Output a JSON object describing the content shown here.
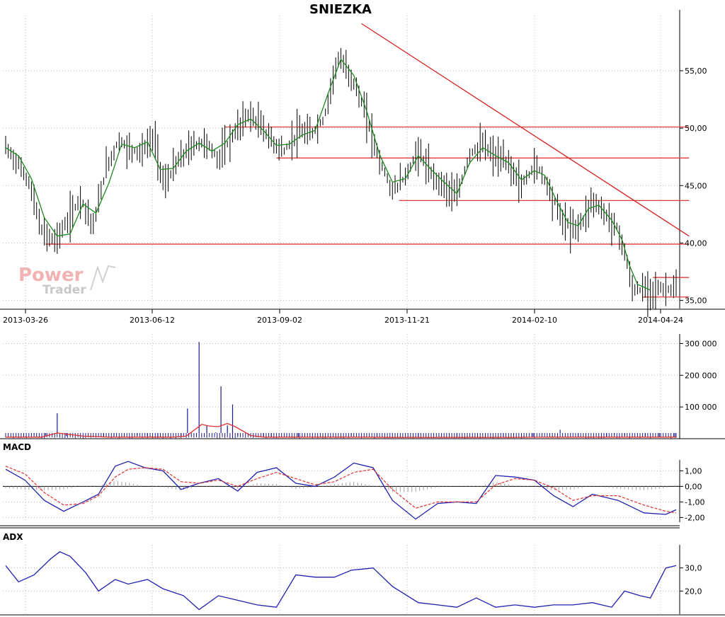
{
  "colors": {
    "background": "#ffffff",
    "grid": "#b8b8b8",
    "axis": "#000000",
    "price_bars": "#000000",
    "moving_average": "#1a8a1a",
    "support_resistance": "#e23a3a",
    "trendline": "#d42020",
    "volume_bars": "#1a1a8c",
    "volume_average": "#e03030",
    "macd_line": "#2020b0",
    "signal_line": "#e03030",
    "histogram": "#a0a0a0",
    "adx_line": "#2020b0"
  },
  "watermark": {
    "line1": "Power",
    "line2": "Trader"
  },
  "chart_data": [
    {
      "type": "candlestick",
      "panel": "price",
      "title": "SNIEZKA",
      "x_tick_labels": [
        "2013-03-26",
        "2013-06-12",
        "2013-09-02",
        "2013-11-21",
        "2014-02-10",
        "2014-04-24"
      ],
      "y_tick_labels": [
        "55,00",
        "50,00",
        "45,00",
        "40,00",
        "35,00"
      ],
      "ylim": [
        34.3,
        59.8
      ],
      "grid": true,
      "price_path": [
        [
          0,
          48.3
        ],
        [
          8,
          47.2
        ],
        [
          18,
          45.3
        ],
        [
          28,
          41.0
        ],
        [
          38,
          40.2
        ],
        [
          48,
          41.8
        ],
        [
          58,
          44.0
        ],
        [
          68,
          41.5
        ],
        [
          78,
          46.5
        ],
        [
          88,
          49.0
        ],
        [
          95,
          48.2
        ],
        [
          105,
          47.9
        ],
        [
          115,
          49.2
        ],
        [
          123,
          45.0
        ],
        [
          133,
          47.0
        ],
        [
          145,
          48.5
        ],
        [
          155,
          48.8
        ],
        [
          165,
          47.3
        ],
        [
          177,
          49.5
        ],
        [
          188,
          51.2
        ],
        [
          198,
          50.2
        ],
        [
          207,
          48.8
        ],
        [
          216,
          48.0
        ],
        [
          227,
          49.6
        ],
        [
          237,
          49.5
        ],
        [
          247,
          50.8
        ],
        [
          257,
          56.0
        ],
        [
          263,
          55.4
        ],
        [
          270,
          54.0
        ],
        [
          280,
          51.0
        ],
        [
          290,
          47.2
        ],
        [
          300,
          44.5
        ],
        [
          310,
          45.8
        ],
        [
          320,
          48.0
        ],
        [
          330,
          46.0
        ],
        [
          340,
          45.0
        ],
        [
          350,
          44.0
        ],
        [
          360,
          47.8
        ],
        [
          370,
          48.5
        ],
        [
          380,
          47.5
        ],
        [
          390,
          46.9
        ],
        [
          400,
          45.0
        ],
        [
          410,
          46.7
        ],
        [
          415,
          46.3
        ],
        [
          425,
          43.8
        ],
        [
          432,
          42.0
        ],
        [
          440,
          41.2
        ],
        [
          448,
          42.0
        ],
        [
          455,
          43.8
        ],
        [
          465,
          42.5
        ],
        [
          475,
          41.2
        ],
        [
          481,
          38.8
        ],
        [
          486,
          36.0
        ],
        [
          492,
          35.9
        ],
        [
          500,
          36.0
        ]
      ],
      "moving_average": [
        [
          0,
          48.3
        ],
        [
          10,
          47.6
        ],
        [
          20,
          45.6
        ],
        [
          30,
          42.2
        ],
        [
          40,
          40.6
        ],
        [
          50,
          40.8
        ],
        [
          60,
          43.4
        ],
        [
          70,
          42.6
        ],
        [
          80,
          45.2
        ],
        [
          90,
          48.6
        ],
        [
          100,
          48.3
        ],
        [
          110,
          48.8
        ],
        [
          120,
          46.4
        ],
        [
          130,
          46.5
        ],
        [
          140,
          48.0
        ],
        [
          150,
          48.7
        ],
        [
          160,
          48.0
        ],
        [
          170,
          48.7
        ],
        [
          180,
          50.3
        ],
        [
          190,
          50.8
        ],
        [
          200,
          49.8
        ],
        [
          210,
          48.5
        ],
        [
          220,
          48.6
        ],
        [
          230,
          49.4
        ],
        [
          240,
          49.8
        ],
        [
          250,
          53.0
        ],
        [
          260,
          56.0
        ],
        [
          270,
          54.6
        ],
        [
          280,
          51.5
        ],
        [
          290,
          47.7
        ],
        [
          300,
          45.3
        ],
        [
          310,
          45.6
        ],
        [
          320,
          47.6
        ],
        [
          330,
          46.4
        ],
        [
          340,
          45.3
        ],
        [
          350,
          44.3
        ],
        [
          360,
          47.0
        ],
        [
          370,
          48.3
        ],
        [
          380,
          47.6
        ],
        [
          390,
          47.0
        ],
        [
          400,
          45.5
        ],
        [
          410,
          46.3
        ],
        [
          418,
          45.9
        ],
        [
          428,
          43.5
        ],
        [
          436,
          41.8
        ],
        [
          444,
          41.5
        ],
        [
          452,
          43.0
        ],
        [
          460,
          43.3
        ],
        [
          470,
          42.0
        ],
        [
          478,
          40.3
        ],
        [
          484,
          38.0
        ],
        [
          490,
          36.4
        ],
        [
          500,
          35.9
        ]
      ],
      "support_resistance": [
        {
          "y": 50.1,
          "x0": 170,
          "x1": 530
        },
        {
          "y": 47.4,
          "x0": 210,
          "x1": 530
        },
        {
          "y": 43.7,
          "x0": 305,
          "x1": 530
        },
        {
          "y": 39.9,
          "x0": 31,
          "x1": 530
        },
        {
          "y": 37.0,
          "x0": 502,
          "x1": 530
        },
        {
          "y": 35.3,
          "x0": 494,
          "x1": 530
        }
      ],
      "trendline": {
        "x0": 276,
        "y0": 59.1,
        "x1": 530,
        "y1": 40.6
      }
    },
    {
      "type": "bar",
      "panel": "volume",
      "y_tick_labels": [
        "300 000",
        "200 000",
        "100 000"
      ],
      "ylim": [
        0,
        330000
      ],
      "spikes": [
        [
          22,
          13000
        ],
        [
          31,
          9000
        ],
        [
          40,
          80000
        ],
        [
          47,
          8000
        ],
        [
          76,
          7000
        ],
        [
          84,
          6000
        ],
        [
          102,
          9000
        ],
        [
          110,
          8000
        ],
        [
          118,
          7000
        ],
        [
          136,
          6000
        ],
        [
          141,
          95000
        ],
        [
          150,
          305000
        ],
        [
          156,
          42000
        ],
        [
          163,
          20000
        ],
        [
          167,
          165000
        ],
        [
          172,
          42000
        ],
        [
          176,
          108000
        ],
        [
          180,
          10000
        ],
        [
          200,
          7000
        ],
        [
          206,
          6000
        ],
        [
          227,
          5000
        ],
        [
          268,
          9000
        ],
        [
          288,
          7000
        ],
        [
          320,
          6000
        ],
        [
          350,
          5000
        ],
        [
          386,
          5000
        ],
        [
          409,
          6000
        ],
        [
          430,
          28000
        ],
        [
          444,
          7000
        ],
        [
          466,
          6000
        ],
        [
          472,
          13000
        ],
        [
          480,
          9000
        ],
        [
          496,
          8000
        ],
        [
          507,
          6000
        ],
        [
          519,
          5000
        ]
      ],
      "average": [
        [
          0,
          5000
        ],
        [
          28,
          5000
        ],
        [
          40,
          18000
        ],
        [
          60,
          8000
        ],
        [
          80,
          5000
        ],
        [
          130,
          5000
        ],
        [
          140,
          8000
        ],
        [
          152,
          45000
        ],
        [
          158,
          40000
        ],
        [
          165,
          38000
        ],
        [
          172,
          48000
        ],
        [
          178,
          38000
        ],
        [
          190,
          10000
        ],
        [
          200,
          5000
        ],
        [
          280,
          5000
        ],
        [
          300,
          4000
        ],
        [
          380,
          4000
        ],
        [
          420,
          5000
        ],
        [
          460,
          5000
        ],
        [
          500,
          5000
        ],
        [
          520,
          5000
        ]
      ]
    },
    {
      "type": "line",
      "panel": "macd",
      "title": "MACD",
      "y_tick_labels": [
        "1,00",
        "0,00",
        "-1,00",
        "-2,00"
      ],
      "ylim": [
        -2.3,
        1.7
      ],
      "series": [
        {
          "points": [
            [
              0,
              1.1
            ],
            [
              15,
              0.4
            ],
            [
              30,
              -0.9
            ],
            [
              45,
              -1.6
            ],
            [
              60,
              -1.0
            ],
            [
              72,
              -0.5
            ],
            [
              85,
              1.3
            ],
            [
              95,
              1.6
            ],
            [
              108,
              1.2
            ],
            [
              122,
              1.0
            ],
            [
              136,
              -0.2
            ],
            [
              150,
              0.2
            ],
            [
              165,
              0.5
            ],
            [
              180,
              -0.3
            ],
            [
              195,
              0.9
            ],
            [
              210,
              1.2
            ],
            [
              225,
              0.2
            ],
            [
              240,
              0.0
            ],
            [
              255,
              0.6
            ],
            [
              270,
              1.5
            ],
            [
              285,
              1.2
            ],
            [
              300,
              -0.9
            ],
            [
              318,
              -2.1
            ],
            [
              335,
              -1.1
            ],
            [
              350,
              -1.0
            ],
            [
              365,
              -1.1
            ],
            [
              380,
              0.7
            ],
            [
              395,
              0.6
            ],
            [
              410,
              0.4
            ],
            [
              425,
              -0.6
            ],
            [
              440,
              -1.3
            ],
            [
              455,
              -0.5
            ],
            [
              475,
              -0.9
            ],
            [
              495,
              -1.7
            ],
            [
              512,
              -1.8
            ],
            [
              520,
              -1.5
            ]
          ]
        },
        {
          "points": [
            [
              0,
              1.3
            ],
            [
              15,
              0.8
            ],
            [
              30,
              -0.4
            ],
            [
              45,
              -1.2
            ],
            [
              60,
              -1.1
            ],
            [
              72,
              -0.6
            ],
            [
              85,
              0.6
            ],
            [
              95,
              1.1
            ],
            [
              108,
              1.2
            ],
            [
              122,
              1.1
            ],
            [
              136,
              0.3
            ],
            [
              150,
              0.2
            ],
            [
              165,
              0.4
            ],
            [
              180,
              0.0
            ],
            [
              195,
              0.5
            ],
            [
              210,
              0.9
            ],
            [
              225,
              0.5
            ],
            [
              240,
              0.1
            ],
            [
              255,
              0.3
            ],
            [
              270,
              0.9
            ],
            [
              285,
              1.1
            ],
            [
              300,
              -0.2
            ],
            [
              318,
              -1.4
            ],
            [
              335,
              -1.0
            ],
            [
              350,
              -1.0
            ],
            [
              365,
              -1.0
            ],
            [
              380,
              0.1
            ],
            [
              395,
              0.5
            ],
            [
              410,
              0.4
            ],
            [
              425,
              -0.1
            ],
            [
              440,
              -0.9
            ],
            [
              455,
              -0.6
            ],
            [
              475,
              -0.6
            ],
            [
              495,
              -1.2
            ],
            [
              512,
              -1.6
            ],
            [
              520,
              -1.7
            ]
          ]
        }
      ]
    },
    {
      "type": "line",
      "panel": "adx",
      "title": "ADX",
      "y_tick_labels": [
        "30,0",
        "20,0"
      ],
      "ylim": [
        10,
        40
      ],
      "series": [
        {
          "points": [
            [
              0,
              31
            ],
            [
              10,
              24
            ],
            [
              22,
              27
            ],
            [
              35,
              34
            ],
            [
              42,
              37
            ],
            [
              50,
              35
            ],
            [
              62,
              28
            ],
            [
              72,
              20
            ],
            [
              85,
              25
            ],
            [
              95,
              23
            ],
            [
              110,
              25
            ],
            [
              122,
              21
            ],
            [
              138,
              18
            ],
            [
              150,
              12
            ],
            [
              165,
              18
            ],
            [
              180,
              16
            ],
            [
              195,
              14
            ],
            [
              210,
              13
            ],
            [
              225,
              27
            ],
            [
              240,
              26
            ],
            [
              255,
              26
            ],
            [
              268,
              29
            ],
            [
              285,
              30
            ],
            [
              300,
              22
            ],
            [
              320,
              15
            ],
            [
              335,
              14
            ],
            [
              350,
              13
            ],
            [
              365,
              17
            ],
            [
              380,
              13
            ],
            [
              395,
              14
            ],
            [
              410,
              13
            ],
            [
              425,
              14
            ],
            [
              440,
              14
            ],
            [
              455,
              15
            ],
            [
              470,
              13
            ],
            [
              480,
              20
            ],
            [
              492,
              18
            ],
            [
              500,
              17
            ],
            [
              512,
              30
            ],
            [
              520,
              31
            ]
          ]
        }
      ]
    }
  ]
}
